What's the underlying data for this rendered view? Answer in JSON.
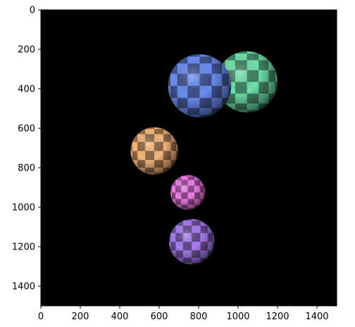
{
  "chart_data": {
    "type": "image",
    "title": "",
    "xlabel": "",
    "ylabel": "",
    "xlim": [
      0,
      1500
    ],
    "ylim": [
      1500,
      0
    ],
    "y_inverted": true,
    "grid": false,
    "legend": "none",
    "background_color": "#000000",
    "x_ticks": [
      0,
      200,
      400,
      600,
      800,
      1000,
      1200,
      1400
    ],
    "y_ticks": [
      0,
      200,
      400,
      600,
      800,
      1000,
      1200,
      1400
    ],
    "spheres": [
      {
        "color_name": "green",
        "x": 1045,
        "y": 365,
        "radius": 155,
        "color": "#6fe0a8"
      },
      {
        "color_name": "blue",
        "x": 805,
        "y": 385,
        "radius": 160,
        "color": "#6a8cf0"
      },
      {
        "color_name": "orange",
        "x": 575,
        "y": 715,
        "radius": 120,
        "color": "#f7b57a"
      },
      {
        "color_name": "pink",
        "x": 745,
        "y": 925,
        "radius": 88,
        "color": "#f07ce8"
      },
      {
        "color_name": "purple",
        "x": 765,
        "y": 1175,
        "radius": 115,
        "color": "#a87cf0"
      }
    ]
  }
}
